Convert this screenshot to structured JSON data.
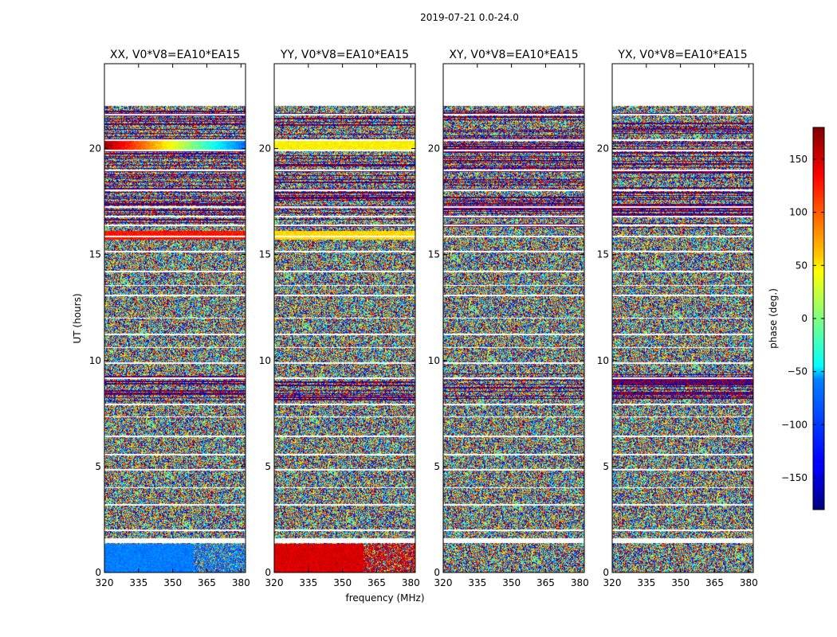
{
  "chart_data": {
    "type": "heatmap",
    "suptitle": "2019-07-21 0.0-24.0",
    "xlabel": "frequency (MHz)",
    "ylabel": "UT (hours)",
    "xlim": [
      320,
      382
    ],
    "ylim": [
      0,
      24
    ],
    "xticks": [
      320,
      335,
      350,
      365,
      380
    ],
    "yticks": [
      0,
      5,
      10,
      15,
      20
    ],
    "panels": [
      {
        "name": "XX",
        "title": "XX, V0*V8=EA10*EA15"
      },
      {
        "name": "YY",
        "title": "YY, V0*V8=EA10*EA15"
      },
      {
        "name": "XY",
        "title": "XY, V0*V8=EA10*EA15"
      },
      {
        "name": "YX",
        "title": "YX, V0*V8=EA10*EA15"
      }
    ],
    "colorbar": {
      "label": "phase (deg.)",
      "range": [
        -180,
        180
      ],
      "ticks": [
        150,
        100,
        50,
        0,
        -50,
        -100,
        -150
      ],
      "tick_labels": [
        "150",
        "100",
        "50",
        "0",
        "−50",
        "−100",
        "−150"
      ],
      "colormap": "jet"
    },
    "no_data_hours": [
      [
        22.0,
        24.0
      ],
      [
        1.4,
        1.6
      ]
    ],
    "coherent_phase_bands": [
      {
        "panel": "XX",
        "hours": [
          0.0,
          1.35
        ],
        "phase_deg": -90,
        "note": "cyan block"
      },
      {
        "panel": "YY",
        "hours": [
          0.0,
          1.35
        ],
        "phase_deg": 150,
        "note": "red block"
      },
      {
        "panel": "XX",
        "hours": [
          15.7,
          16.1
        ],
        "phase_deg": 130,
        "note": "red stripe"
      },
      {
        "panel": "YY",
        "hours": [
          15.7,
          16.1
        ],
        "phase_deg": 60,
        "note": "yellow stripe"
      },
      {
        "panel": "XX",
        "hours": [
          19.9,
          20.4
        ],
        "phase_deg": 170,
        "note": "dark red to blue stripe"
      },
      {
        "panel": "YY",
        "hours": [
          19.9,
          20.4
        ],
        "phase_deg": 50,
        "note": "orange stripe"
      }
    ]
  }
}
